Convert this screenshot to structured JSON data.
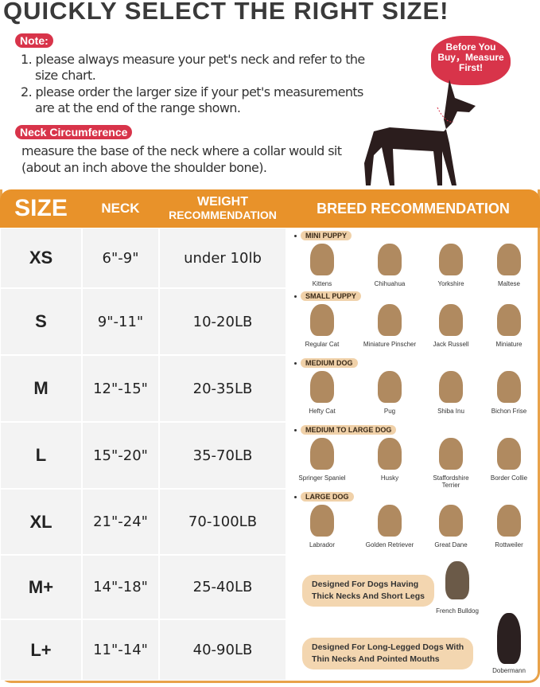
{
  "title": "QUICKLY SELECT THE RIGHT SIZE!",
  "note": {
    "label": "Note:",
    "items": [
      "1. please always measure your pet's neck and refer to the",
      "size chart.",
      "2. please order the larger size if your pet's measurements",
      "are at the end of the range shown."
    ]
  },
  "neck": {
    "label": "Neck  Circumference",
    "lines": [
      "measure the base of the neck where a collar would sit",
      "(about an inch above the shoulder bone)."
    ]
  },
  "bubble": [
    "Before You",
    "Buy，Measure",
    "First!"
  ],
  "colors": {
    "accent": "#e8922a",
    "red": "#d8344a",
    "badge": "#f0d1a9"
  },
  "header": {
    "size": "SIZE",
    "neck": "NECK",
    "weight1": "WEIGHT",
    "weight2": "RECOMMENDATION",
    "breed": "BREED RECOMMENDATION"
  },
  "rows": [
    {
      "size": "XS",
      "neck": "6\"-9\"",
      "weight": "under 10lb",
      "category": "MINI PUPPY",
      "animals": [
        "Kittens",
        "Chihuahua",
        "Yorkshire",
        "Maltese"
      ]
    },
    {
      "size": "S",
      "neck": "9\"-11\"",
      "weight": "10-20LB",
      "category": "SMALL PUPPY",
      "animals": [
        "Regular Cat",
        "Miniature Pinscher",
        "Jack Russell",
        "Miniature"
      ]
    },
    {
      "size": "M",
      "neck": "12\"-15\"",
      "weight": "20-35LB",
      "category": "MEDIUM DOG",
      "animals": [
        "Hefty Cat",
        "Pug",
        "Shiba Inu",
        "Bichon Frise"
      ]
    },
    {
      "size": "L",
      "neck": "15\"-20\"",
      "weight": "35-70LB",
      "category": "MEDIUM TO LARGE DOG",
      "animals": [
        "Springer Spaniel",
        "Husky",
        "Staffordshire Terrier",
        "Border Collie"
      ]
    },
    {
      "size": "XL",
      "neck": "21\"-24\"",
      "weight": "70-100LB",
      "category": "LARGE DOG",
      "animals": [
        "Labrador",
        "Golden Retriever",
        "Great Dane",
        "Rottweiler"
      ]
    },
    {
      "size": "M+",
      "neck": "14\"-18\"",
      "weight": "25-40LB",
      "design": [
        "Designed For Dogs Having",
        "Thick Necks And Short Legs"
      ],
      "animals": [
        "French Bulldog"
      ]
    },
    {
      "size": "L+",
      "neck": "11\"-14\"",
      "weight": "40-90LB",
      "design": [
        "Designed For Long-Legged Dogs With",
        "Thin Necks And Pointed Mouths"
      ],
      "animals": [
        "Dobermann"
      ]
    }
  ]
}
